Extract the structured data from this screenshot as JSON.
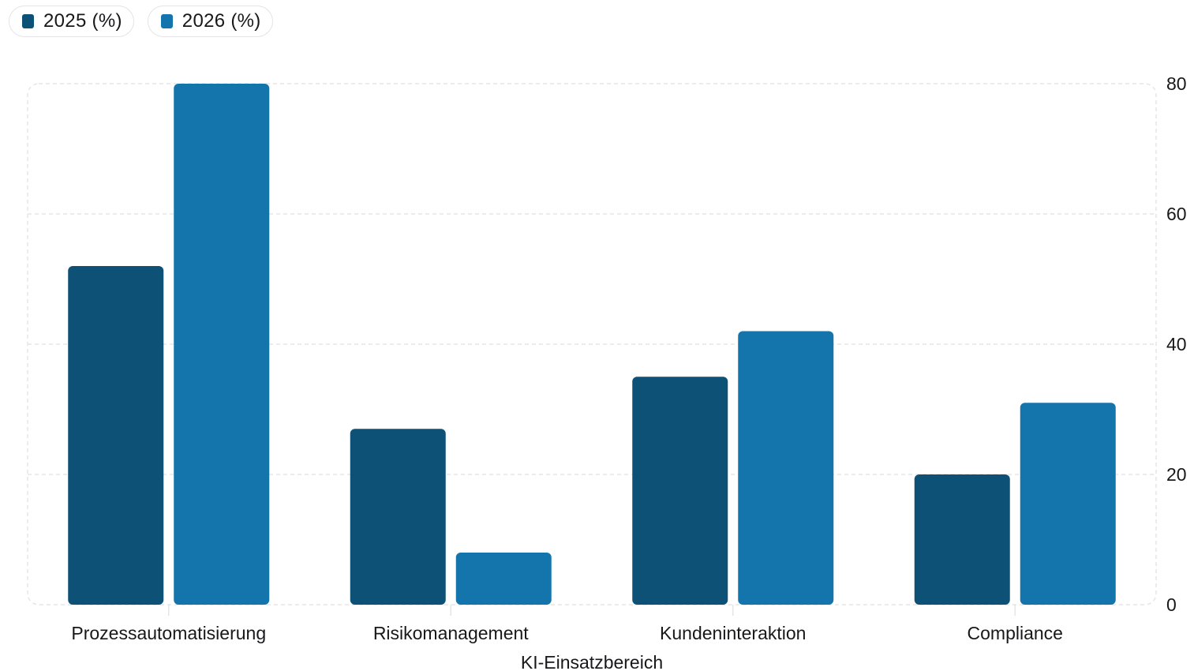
{
  "legend": {
    "items": [
      {
        "label": "2025 (%)",
        "color": "#0d5176"
      },
      {
        "label": "2026 (%)",
        "color": "#1375ab"
      }
    ]
  },
  "chart_data": {
    "type": "bar",
    "title": "",
    "xlabel": "KI-Einsatzbereich",
    "ylabel": "",
    "categories": [
      "Prozessautomatisierung",
      "Risikomanagement",
      "Kundeninteraktion",
      "Compliance"
    ],
    "series": [
      {
        "name": "2025 (%)",
        "color": "#0d5176",
        "values": [
          52,
          27,
          35,
          20
        ]
      },
      {
        "name": "2026 (%)",
        "color": "#1375ab",
        "values": [
          80,
          8,
          42,
          31
        ]
      }
    ],
    "ylim": [
      0,
      80
    ],
    "yticks": [
      0,
      20,
      40,
      60,
      80
    ],
    "y_axis_side": "right",
    "grid": true,
    "legend_position": "top-left"
  }
}
